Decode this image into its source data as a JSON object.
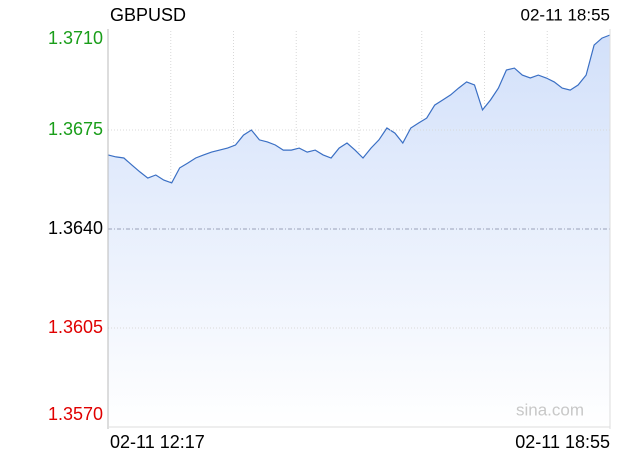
{
  "chart_data": {
    "type": "line",
    "title": "GBPUSD",
    "watermark": "sina.com",
    "categories": [
      "02-11 12:17",
      null,
      null,
      null,
      null,
      null,
      null,
      null,
      null,
      null,
      null,
      null,
      null,
      null,
      null,
      null,
      null,
      null,
      null,
      null,
      null,
      null,
      null,
      null,
      null,
      null,
      null,
      null,
      null,
      null,
      null,
      null,
      null,
      null,
      null,
      null,
      null,
      null,
      null,
      null,
      null,
      null,
      null,
      null,
      null,
      null,
      null,
      null,
      null,
      null,
      null,
      null,
      null,
      null,
      null,
      null,
      null,
      null,
      null,
      null,
      null,
      null,
      null,
      "02-11 18:55"
    ],
    "series": [
      {
        "name": "GBPUSD",
        "color": "#3a6fc4",
        "fill": "#d6e3fa",
        "values": [
          1.36662,
          1.36655,
          1.36651,
          1.36626,
          1.36602,
          1.3658,
          1.36591,
          1.36573,
          1.36563,
          1.36616,
          1.36633,
          1.36651,
          1.36662,
          1.36672,
          1.36679,
          1.36686,
          1.36697,
          1.36732,
          1.3675,
          1.36715,
          1.36708,
          1.36697,
          1.36679,
          1.36679,
          1.36686,
          1.36672,
          1.36679,
          1.36662,
          1.36651,
          1.36686,
          1.36704,
          1.36679,
          1.36651,
          1.36686,
          1.36715,
          1.36757,
          1.36739,
          1.36704,
          1.36757,
          1.36775,
          1.36792,
          1.36838,
          1.36856,
          1.36874,
          1.36898,
          1.3692,
          1.36909,
          1.36821,
          1.36856,
          1.36898,
          1.36962,
          1.36969,
          1.36944,
          1.36934,
          1.36944,
          1.36934,
          1.3692,
          1.36898,
          1.36891,
          1.36909,
          1.36944,
          1.3705,
          1.37075,
          1.37086
        ]
      }
    ],
    "ylim": [
      1.357,
      1.371
    ],
    "yticks": [
      {
        "value": 1.371,
        "label": "1.3710"
      },
      1.3675,
      {
        "value": 1.364,
        "label": "1.3640"
      },
      1.3605,
      {
        "value": 1.357,
        "label": "1.3570"
      }
    ],
    "up_color": "#1a9e1a",
    "flat_color": "#000000",
    "down_color": "#e00000",
    "grid": true
  }
}
